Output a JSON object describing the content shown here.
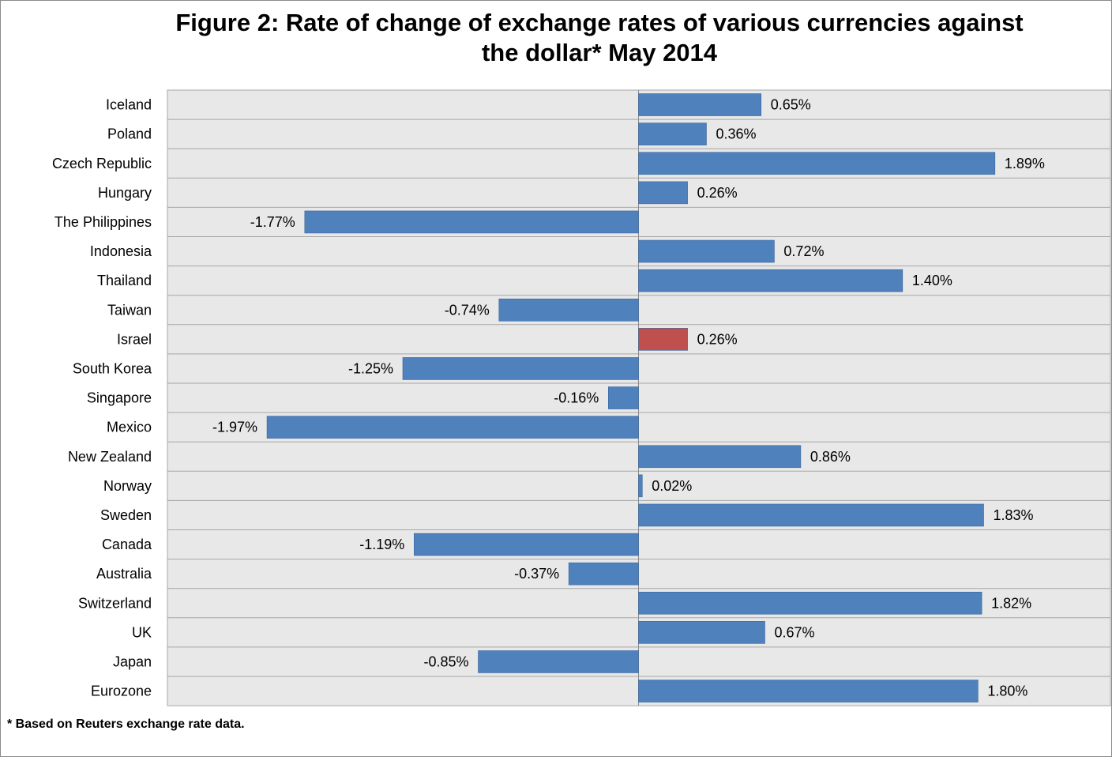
{
  "chart_data": {
    "type": "bar",
    "orientation": "horizontal",
    "title_line1": "Figure 2: Rate of change of exchange rates of various currencies against",
    "title_line2": "the dollar* May 2014",
    "categories": [
      "Iceland",
      "Poland",
      "Czech Republic",
      "Hungary",
      "The Philippines",
      "Indonesia",
      "Thailand",
      "Taiwan",
      "Israel",
      "South Korea",
      "Singapore",
      "Mexico",
      "New Zealand",
      "Norway",
      "Sweden",
      "Canada",
      "Australia",
      "Switzerland",
      "UK",
      "Japan",
      "Eurozone"
    ],
    "values": [
      0.65,
      0.36,
      1.89,
      0.26,
      -1.77,
      0.72,
      1.4,
      -0.74,
      0.26,
      -1.25,
      -0.16,
      -1.97,
      0.86,
      0.02,
      1.83,
      -1.19,
      -0.37,
      1.82,
      0.67,
      -0.85,
      1.8
    ],
    "value_labels": [
      "0.65%",
      "0.36%",
      "1.89%",
      "0.26%",
      "-1.77%",
      "0.72%",
      "1.40%",
      "-0.74%",
      "0.26%",
      "-1.25%",
      "-0.16%",
      "-1.97%",
      "0.86%",
      "0.02%",
      "1.83%",
      "-1.19%",
      "-0.37%",
      "1.82%",
      "0.67%",
      "-0.85%",
      "1.80%"
    ],
    "highlight_category": "Israel",
    "xlim": [
      -2.5,
      2.5
    ],
    "grid": "horizontal bands",
    "colors": {
      "bar": "#4f81bd",
      "highlight": "#c0504d",
      "plot_background": "#e8e8e8",
      "band_line": "#a6a6a6"
    }
  },
  "footnote": "* Based on Reuters exchange rate data."
}
